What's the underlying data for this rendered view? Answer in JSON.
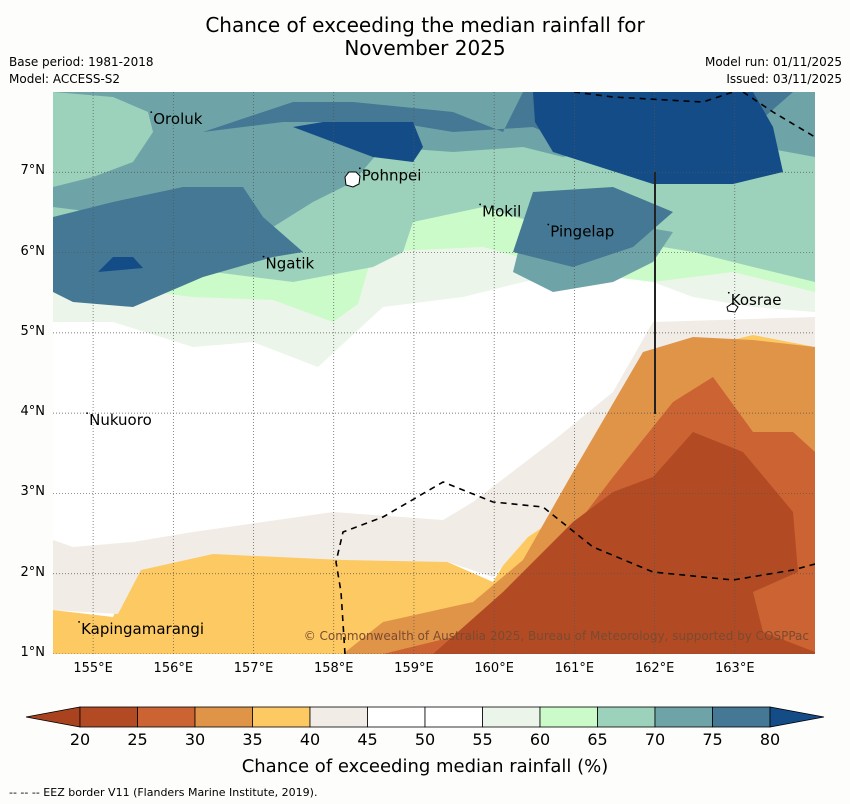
{
  "title_line1": "Chance of exceeding the median rainfall for",
  "title_line2": "November 2025",
  "base_period": "Base period: 1981-2018",
  "model": "Model: ACCESS-S2",
  "model_run": "Model run: 01/11/2025",
  "issued": "Issued: 03/11/2025",
  "copyright": "© Commonwealth of Australia 2025, Bureau of Meteorology, supported by COSPPac",
  "footnote": "--  --  -- EEZ border V11 (Flanders Marine Institute, 2019).",
  "chart_data": {
    "type": "heatmap",
    "title": "Chance of exceeding the median rainfall for November 2025",
    "xlabel": "",
    "ylabel": "",
    "x_ticks": [
      "155°E",
      "156°E",
      "157°E",
      "158°E",
      "159°E",
      "160°E",
      "161°E",
      "162°E",
      "163°E"
    ],
    "y_ticks": [
      "7°N",
      "6°N",
      "5°N",
      "4°N",
      "3°N",
      "2°N",
      "1°N"
    ],
    "x_range": [
      154.5,
      164.0
    ],
    "y_range": [
      1.0,
      8.0
    ],
    "grid": true,
    "places": [
      {
        "name": "Oroluk",
        "lon": 155.75,
        "lat": 7.6
      },
      {
        "name": "Pohnpei",
        "lon": 158.35,
        "lat": 6.9
      },
      {
        "name": "Mokil",
        "lon": 159.85,
        "lat": 6.45
      },
      {
        "name": "Pingelap",
        "lon": 160.7,
        "lat": 6.2
      },
      {
        "name": "Ngatik",
        "lon": 157.15,
        "lat": 5.8
      },
      {
        "name": "Kosrae",
        "lon": 162.95,
        "lat": 5.35
      },
      {
        "name": "Nukuoro",
        "lon": 154.95,
        "lat": 3.85
      },
      {
        "name": "Kapingamarangi",
        "lon": 154.85,
        "lat": 1.25
      }
    ],
    "colorbar": {
      "label": "Chance of exceeding median rainfall (%)",
      "ticks": [
        20,
        25,
        30,
        35,
        40,
        45,
        50,
        55,
        60,
        65,
        70,
        75,
        80
      ],
      "colors": [
        "#a9431f",
        "#b24b24",
        "#cb6332",
        "#e09447",
        "#fdc963",
        "#f1ece6",
        "#ffffff",
        "#ffffff",
        "#ecf5ea",
        "#ccfbca",
        "#9cd2bb",
        "#6ea4a7",
        "#447894",
        "#144c88"
      ],
      "extend": "both"
    },
    "regions_summary": [
      {
        "area": "north (around Pohnpei, 6-8°N)",
        "range": "70-80+"
      },
      {
        "area": "central (3.5-5°N)",
        "range": "45-60"
      },
      {
        "area": "southwest (1-2.5°N)",
        "range": "35-45"
      },
      {
        "area": "southeast (south of Kosrae)",
        "range": "20-35"
      }
    ]
  }
}
